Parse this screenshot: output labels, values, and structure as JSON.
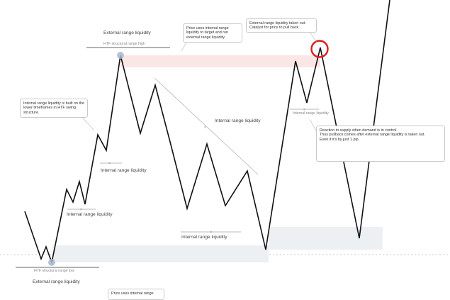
{
  "annotations": {
    "top_external_label": "External range liquidity",
    "top_htf_label": "HTF structural range high",
    "bottom_htf_label": "HTF structural range low",
    "bottom_external_label": "External range liquidity",
    "internal_labels": [
      "Internal range liquidity",
      "Internal range liquidity",
      "Internal range liquidity",
      "Internal range liquidity",
      "Internal range liquidity"
    ],
    "callout_price_uses": "Price uses internal range liquidity to target and run external range liquidity.",
    "callout_external_taken": "External range liquidity taken out. Catalyst for price to pull back.",
    "callout_internal_built": "Internal range liquidity is built on the lower timeframes in HTF swing structure.",
    "callout_reaction": "Reaction to supply when demand is in control.\nThus pullback comes after external range liquidity is taken out.\nEven if it's by just 1 pip.",
    "callout_bottom_partial": "Price uses internal range"
  },
  "colors": {
    "price_line": "#111111",
    "highlight_circle": "#d81e1e",
    "zone_red": "#fbe6e6",
    "zone_grey": "#edf0f2",
    "trend_line": "#b5b5b5",
    "swing_dot": "#a9b8d0"
  }
}
